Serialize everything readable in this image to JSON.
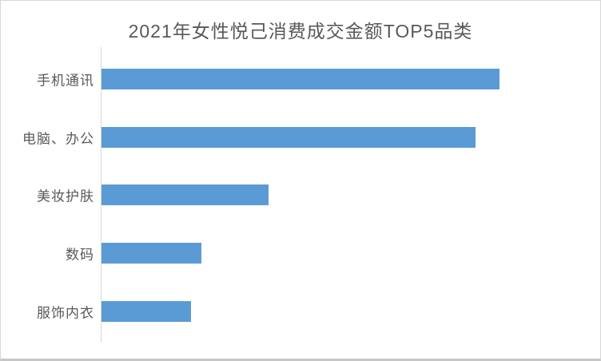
{
  "frame": {
    "background": "#ffffff",
    "border_color": "#d7d7d7",
    "bottom_edge_color": "#c6c6c6"
  },
  "chart_data": {
    "type": "bar",
    "orientation": "horizontal",
    "title": "2021年女性悦己消费成交金额TOP5品类",
    "categories": [
      "手机通讯",
      "电脑、办公",
      "美妆护肤",
      "数码",
      "服饰内衣"
    ],
    "values": [
      100,
      94,
      42,
      25,
      22.5
    ],
    "value_scale": "relative (no numeric axis or data labels shown; longest bar = 100)",
    "xlabel": "",
    "ylabel": "",
    "xlim": [
      0,
      120
    ],
    "grid": false,
    "legend": false,
    "bar_color": "#5B9BD5",
    "axis_line_color": "#D9D9D9",
    "title_color": "#595959",
    "label_color": "#595959"
  }
}
